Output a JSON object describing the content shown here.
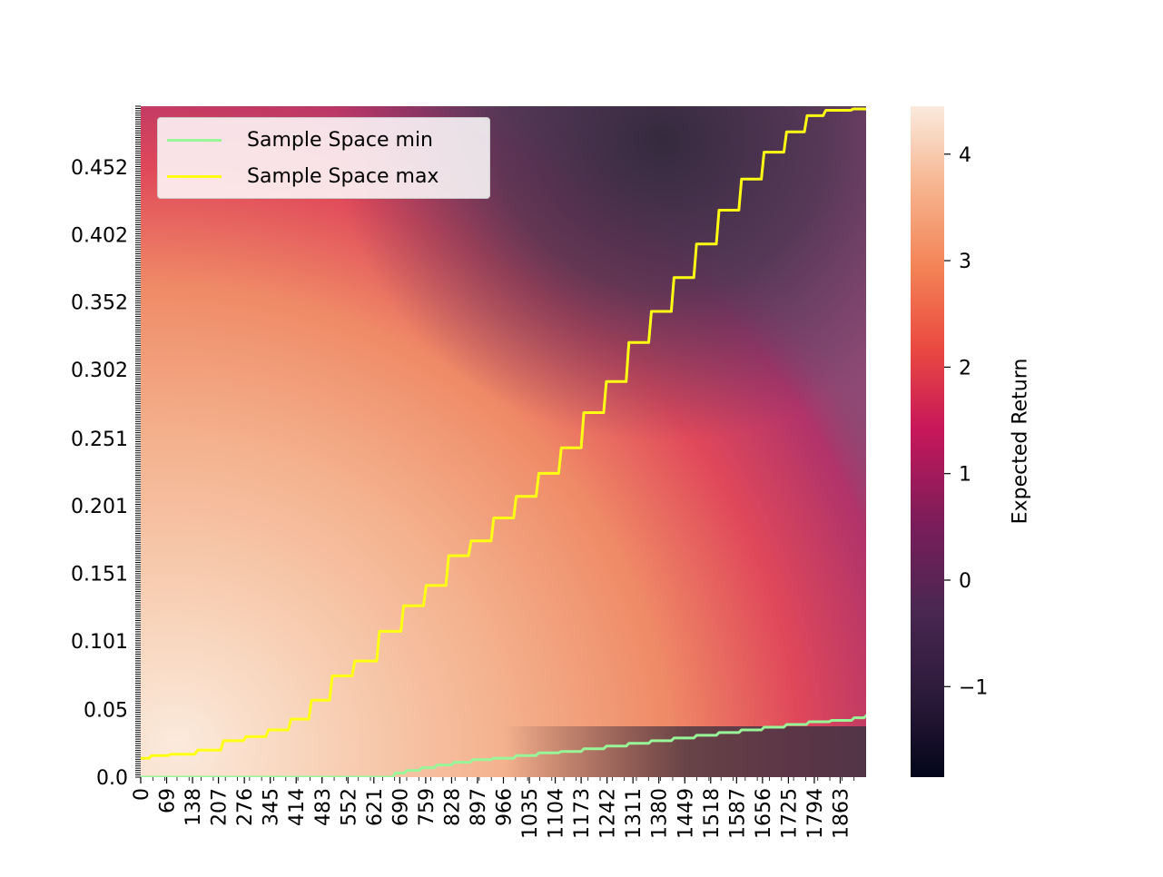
{
  "chart_data": {
    "type": "heatmap",
    "title": "",
    "xlabel": "",
    "ylabel": "",
    "x_tick_labels": [
      "0",
      "69",
      "138",
      "207",
      "276",
      "345",
      "414",
      "483",
      "552",
      "621",
      "690",
      "759",
      "828",
      "897",
      "966",
      "1035",
      "1104",
      "1173",
      "1242",
      "1311",
      "1380",
      "1449",
      "1518",
      "1587",
      "1656",
      "1725",
      "1794",
      "1863"
    ],
    "x_range": [
      0,
      1932
    ],
    "y_tick_labels": [
      "0.0",
      "0.05",
      "0.101",
      "0.151",
      "0.201",
      "0.251",
      "0.302",
      "0.352",
      "0.402",
      "0.452"
    ],
    "y_tick_values": [
      0.0,
      0.05,
      0.101,
      0.151,
      0.201,
      0.251,
      0.302,
      0.352,
      0.402,
      0.452
    ],
    "y_range": [
      0.0,
      0.497
    ],
    "colorbar": {
      "label": "Expected Return",
      "range": [
        -1.85,
        4.45
      ],
      "ticks": [
        4,
        3,
        2,
        1,
        0,
        -1
      ],
      "tick_labels": [
        "4",
        "3",
        "2",
        "1",
        "0",
        "−1"
      ],
      "colormap": "rocket"
    },
    "legend": {
      "placement": "top-left",
      "entries": [
        {
          "label": "Sample Space min",
          "color": "#98f598"
        },
        {
          "label": "Sample Space max",
          "color": "#ffff14"
        }
      ]
    },
    "series": [
      {
        "name": "Sample Space min",
        "color": "#98f598",
        "x": [
          0,
          660,
          680,
          720,
          760,
          800,
          850,
          900,
          960,
          1020,
          1080,
          1140,
          1200,
          1260,
          1320,
          1380,
          1440,
          1500,
          1560,
          1620,
          1680,
          1740,
          1800,
          1860,
          1920,
          1932
        ],
        "y": [
          0.0,
          0.0,
          0.003,
          0.005,
          0.007,
          0.009,
          0.011,
          0.013,
          0.014,
          0.016,
          0.018,
          0.019,
          0.021,
          0.023,
          0.025,
          0.027,
          0.029,
          0.031,
          0.033,
          0.035,
          0.037,
          0.039,
          0.041,
          0.042,
          0.044,
          0.046
        ]
      },
      {
        "name": "Sample Space max",
        "color": "#ffff14",
        "x": [
          0,
          40,
          100,
          180,
          240,
          300,
          360,
          420,
          470,
          530,
          590,
          660,
          720,
          780,
          840,
          900,
          960,
          1020,
          1080,
          1140,
          1200,
          1260,
          1320,
          1380,
          1440,
          1500,
          1560,
          1620,
          1680,
          1740,
          1790,
          1840,
          1932
        ],
        "y": [
          0.014,
          0.016,
          0.017,
          0.02,
          0.027,
          0.03,
          0.035,
          0.043,
          0.057,
          0.075,
          0.086,
          0.108,
          0.127,
          0.142,
          0.164,
          0.175,
          0.192,
          0.208,
          0.225,
          0.244,
          0.27,
          0.293,
          0.322,
          0.345,
          0.37,
          0.395,
          0.42,
          0.443,
          0.463,
          0.478,
          0.49,
          0.494,
          0.495
        ]
      }
    ]
  }
}
